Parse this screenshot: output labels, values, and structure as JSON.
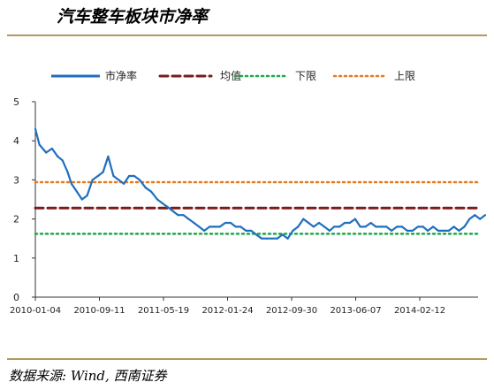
{
  "header": {
    "title": "汽车整车板块市净率"
  },
  "footer": {
    "source": "数据来源: Wind, 西南证券"
  },
  "chart_data": {
    "type": "line",
    "title": "汽车整车板块市净率",
    "xlabel": "",
    "ylabel": "",
    "ylim": [
      0,
      5
    ],
    "yticks": [
      "0",
      "1",
      "2",
      "3",
      "4",
      "5"
    ],
    "xticks": [
      "2010-01-04",
      "2010-09-11",
      "2011-05-19",
      "2012-01-24",
      "2012-09-30",
      "2013-06-07",
      "2014-02-12"
    ],
    "legend_position": "top",
    "grid": false,
    "series": [
      {
        "name": "市净率",
        "color": "#1f6fbf",
        "style": "solid",
        "x": [
          "2010-01-04",
          "2010-01-20",
          "2010-02-15",
          "2010-03-10",
          "2010-04-01",
          "2010-04-20",
          "2010-05-10",
          "2010-05-25",
          "2010-06-15",
          "2010-07-05",
          "2010-07-25",
          "2010-08-15",
          "2010-09-05",
          "2010-09-25",
          "2010-10-15",
          "2010-11-05",
          "2010-11-25",
          "2010-12-15",
          "2011-01-05",
          "2011-01-25",
          "2011-02-15",
          "2011-03-10",
          "2011-04-01",
          "2011-04-25",
          "2011-05-15",
          "2011-06-05",
          "2011-06-25",
          "2011-07-15",
          "2011-08-05",
          "2011-08-25",
          "2011-09-15",
          "2011-10-05",
          "2011-10-25",
          "2011-11-15",
          "2011-12-05",
          "2011-12-25",
          "2012-01-15",
          "2012-02-05",
          "2012-02-25",
          "2012-03-15",
          "2012-04-05",
          "2012-04-25",
          "2012-05-15",
          "2012-06-05",
          "2012-06-25",
          "2012-07-15",
          "2012-08-05",
          "2012-08-25",
          "2012-09-15",
          "2012-10-05",
          "2012-10-25",
          "2012-11-15",
          "2012-12-05",
          "2012-12-25",
          "2013-01-15",
          "2013-02-05",
          "2013-02-25",
          "2013-03-15",
          "2013-04-05",
          "2013-04-25",
          "2013-05-15",
          "2013-06-05",
          "2013-06-25",
          "2013-07-15",
          "2013-08-05",
          "2013-08-25",
          "2013-09-15",
          "2013-10-05",
          "2013-10-25",
          "2013-11-15",
          "2013-12-05",
          "2013-12-25",
          "2014-01-15",
          "2014-02-05",
          "2014-02-25",
          "2014-03-15",
          "2014-04-05",
          "2014-04-25",
          "2014-05-15",
          "2014-06-05",
          "2014-06-25",
          "2014-07-15",
          "2014-08-05",
          "2014-08-25",
          "2014-09-15",
          "2014-10-05",
          "2014-10-25"
        ],
        "values": [
          4.3,
          3.9,
          3.7,
          3.8,
          3.6,
          3.5,
          3.2,
          2.9,
          2.7,
          2.5,
          2.6,
          3.0,
          3.1,
          3.2,
          3.6,
          3.1,
          3.0,
          2.9,
          3.1,
          3.1,
          3.0,
          2.8,
          2.7,
          2.5,
          2.4,
          2.3,
          2.2,
          2.1,
          2.1,
          2.0,
          1.9,
          1.8,
          1.7,
          1.8,
          1.8,
          1.8,
          1.9,
          1.9,
          1.8,
          1.8,
          1.7,
          1.7,
          1.6,
          1.5,
          1.5,
          1.5,
          1.5,
          1.6,
          1.5,
          1.7,
          1.8,
          2.0,
          1.9,
          1.8,
          1.9,
          1.8,
          1.7,
          1.8,
          1.8,
          1.9,
          1.9,
          2.0,
          1.8,
          1.8,
          1.9,
          1.8,
          1.8,
          1.8,
          1.7,
          1.8,
          1.8,
          1.7,
          1.7,
          1.8,
          1.8,
          1.7,
          1.8,
          1.7,
          1.7,
          1.7,
          1.8,
          1.7,
          1.8,
          2.0,
          2.1,
          2.0,
          2.1
        ]
      },
      {
        "name": "均值",
        "color": "#7b1c1c",
        "style": "dashed",
        "value": 2.28
      },
      {
        "name": "下限",
        "color": "#1fa84a",
        "style": "dotted",
        "value": 1.62
      },
      {
        "name": "上限",
        "color": "#e87a1e",
        "style": "dotted",
        "value": 2.94
      }
    ]
  }
}
